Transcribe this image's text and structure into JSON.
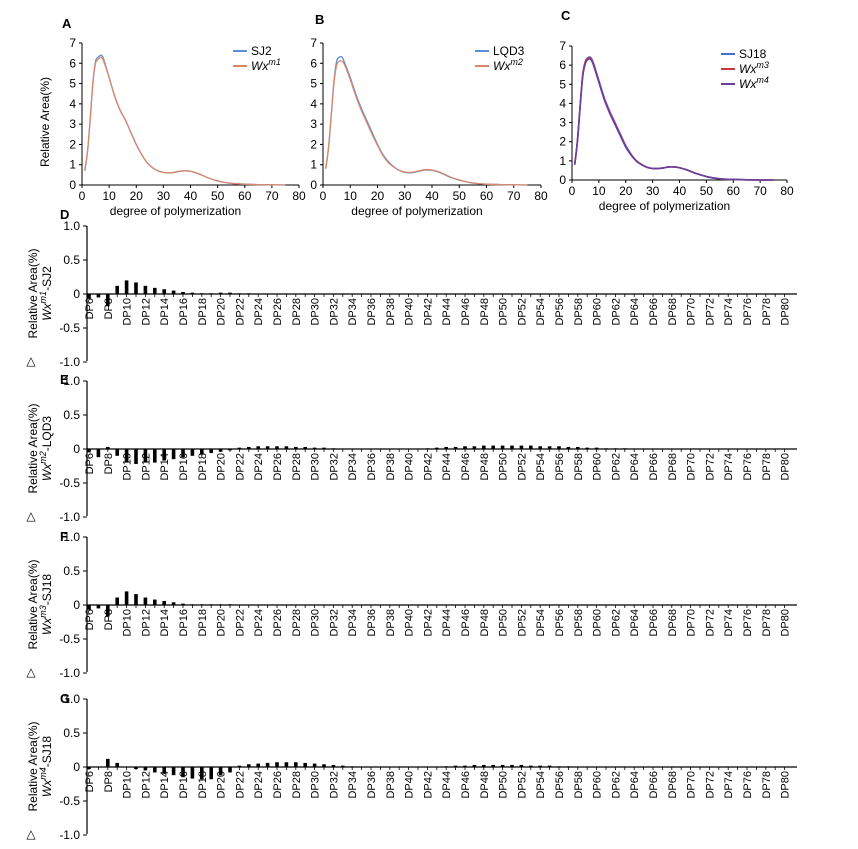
{
  "top_panels": [
    {
      "panel": "A",
      "xlabel": "degree of polymerization",
      "ylabel": "Relative Area(%)",
      "xlim": [
        0,
        80
      ],
      "ylim": [
        0,
        7
      ],
      "xticks": [
        0,
        10,
        20,
        30,
        40,
        50,
        60,
        70,
        80
      ],
      "yticks": [
        0,
        1,
        2,
        3,
        4,
        5,
        6,
        7
      ],
      "legend_position": "top-right",
      "series": [
        {
          "base": "SJ2",
          "sup": "",
          "italic": false,
          "color": "#5b8fd6"
        },
        {
          "base": "Wx",
          "sup": "m1",
          "italic": true,
          "color": "#d9876a"
        }
      ]
    },
    {
      "panel": "B",
      "xlabel": "degree of polymerization",
      "ylabel": "",
      "xlim": [
        0,
        80
      ],
      "ylim": [
        0,
        7
      ],
      "xticks": [
        0,
        10,
        20,
        30,
        40,
        50,
        60,
        70,
        80
      ],
      "yticks": [
        0,
        1,
        2,
        3,
        4,
        5,
        6,
        7
      ],
      "legend_position": "top-right",
      "series": [
        {
          "base": "LQD3",
          "sup": "",
          "italic": false,
          "color": "#5b8fd6"
        },
        {
          "base": "Wx",
          "sup": "m2",
          "italic": true,
          "color": "#d9876a"
        }
      ]
    },
    {
      "panel": "C",
      "xlabel": "degree of polymerization",
      "ylabel": "",
      "xlim": [
        0,
        80
      ],
      "ylim": [
        0,
        7
      ],
      "xticks": [
        0,
        10,
        20,
        30,
        40,
        50,
        60,
        70,
        80
      ],
      "yticks": [
        0,
        1,
        2,
        3,
        4,
        5,
        6,
        7
      ],
      "legend_position": "top-right",
      "series": [
        {
          "base": "SJ18",
          "sup": "",
          "italic": false,
          "color": "#3f6fd8"
        },
        {
          "base": "Wx",
          "sup": "m3",
          "italic": true,
          "color": "#c8383a"
        },
        {
          "base": "Wx",
          "sup": "m4",
          "italic": true,
          "color": "#6a3fa0"
        }
      ]
    }
  ],
  "chart_data": [
    {
      "type": "line",
      "panel": "A",
      "x": [
        1,
        2,
        3,
        4,
        5,
        6,
        7,
        8,
        10,
        12,
        14,
        16,
        18,
        20,
        22,
        24,
        26,
        28,
        30,
        32,
        34,
        36,
        38,
        40,
        42,
        44,
        46,
        48,
        50,
        52,
        54,
        56,
        60,
        65,
        70,
        75
      ],
      "series": [
        {
          "name": "SJ2",
          "values": [
            0.7,
            1.6,
            3.2,
            5.0,
            6.1,
            6.3,
            6.4,
            6.2,
            5.3,
            4.4,
            3.7,
            3.2,
            2.6,
            2.0,
            1.5,
            1.1,
            0.85,
            0.7,
            0.62,
            0.6,
            0.62,
            0.68,
            0.7,
            0.68,
            0.6,
            0.5,
            0.38,
            0.28,
            0.2,
            0.14,
            0.1,
            0.07,
            0.04,
            0.02,
            0.01,
            0.0
          ]
        },
        {
          "name": "Wxm1",
          "values": [
            0.7,
            1.6,
            3.2,
            5.0,
            6.0,
            6.2,
            6.3,
            6.1,
            5.3,
            4.4,
            3.7,
            3.2,
            2.6,
            2.0,
            1.5,
            1.1,
            0.85,
            0.7,
            0.62,
            0.6,
            0.62,
            0.68,
            0.7,
            0.68,
            0.6,
            0.5,
            0.38,
            0.28,
            0.2,
            0.14,
            0.1,
            0.07,
            0.04,
            0.02,
            0.01,
            0.0
          ]
        }
      ]
    },
    {
      "type": "line",
      "panel": "B",
      "x": [
        1,
        2,
        3,
        4,
        5,
        6,
        7,
        8,
        10,
        12,
        14,
        16,
        18,
        20,
        22,
        24,
        26,
        28,
        30,
        32,
        34,
        36,
        38,
        40,
        42,
        44,
        46,
        48,
        50,
        52,
        54,
        56,
        60,
        65,
        70,
        75
      ],
      "series": [
        {
          "name": "LQD3",
          "values": [
            0.8,
            1.8,
            3.4,
            5.1,
            6.1,
            6.3,
            6.3,
            6.0,
            5.3,
            4.5,
            3.8,
            3.2,
            2.6,
            2.0,
            1.5,
            1.15,
            0.9,
            0.72,
            0.62,
            0.6,
            0.64,
            0.7,
            0.74,
            0.72,
            0.65,
            0.55,
            0.42,
            0.32,
            0.24,
            0.17,
            0.12,
            0.08,
            0.04,
            0.02,
            0.01,
            0.0
          ]
        },
        {
          "name": "Wxm2",
          "values": [
            0.8,
            1.8,
            3.4,
            5.0,
            5.9,
            6.1,
            6.1,
            5.9,
            5.2,
            4.4,
            3.7,
            3.1,
            2.5,
            1.95,
            1.45,
            1.1,
            0.88,
            0.72,
            0.64,
            0.62,
            0.66,
            0.72,
            0.76,
            0.74,
            0.67,
            0.57,
            0.44,
            0.33,
            0.25,
            0.18,
            0.12,
            0.08,
            0.04,
            0.02,
            0.01,
            0.0
          ]
        }
      ]
    },
    {
      "type": "line",
      "panel": "C",
      "x": [
        1,
        2,
        3,
        4,
        5,
        6,
        7,
        8,
        10,
        12,
        14,
        16,
        18,
        20,
        22,
        24,
        26,
        28,
        30,
        32,
        34,
        36,
        38,
        40,
        42,
        44,
        46,
        48,
        50,
        52,
        54,
        56,
        60,
        65,
        70,
        75
      ],
      "series": [
        {
          "name": "SJ18",
          "values": [
            0.8,
            2.0,
            3.8,
            5.5,
            6.2,
            6.4,
            6.4,
            6.1,
            5.2,
            4.3,
            3.6,
            3.0,
            2.4,
            1.8,
            1.35,
            1.0,
            0.8,
            0.66,
            0.6,
            0.6,
            0.63,
            0.68,
            0.68,
            0.64,
            0.56,
            0.46,
            0.35,
            0.26,
            0.18,
            0.12,
            0.08,
            0.05,
            0.03,
            0.01,
            0.0,
            0.0
          ]
        },
        {
          "name": "Wxm3",
          "values": [
            0.8,
            2.0,
            3.8,
            5.5,
            6.2,
            6.35,
            6.35,
            6.05,
            5.15,
            4.25,
            3.55,
            2.95,
            2.35,
            1.75,
            1.32,
            1.0,
            0.8,
            0.66,
            0.6,
            0.6,
            0.63,
            0.68,
            0.68,
            0.64,
            0.56,
            0.46,
            0.35,
            0.26,
            0.18,
            0.12,
            0.08,
            0.05,
            0.03,
            0.01,
            0.0,
            0.0
          ]
        },
        {
          "name": "Wxm4",
          "values": [
            0.8,
            2.0,
            3.8,
            5.4,
            6.1,
            6.3,
            6.3,
            6.0,
            5.1,
            4.2,
            3.5,
            2.9,
            2.3,
            1.72,
            1.3,
            0.98,
            0.79,
            0.66,
            0.6,
            0.6,
            0.63,
            0.68,
            0.68,
            0.64,
            0.56,
            0.46,
            0.35,
            0.26,
            0.18,
            0.12,
            0.08,
            0.05,
            0.03,
            0.01,
            0.0,
            0.0
          ]
        }
      ]
    },
    {
      "type": "bar",
      "panel": "D",
      "ylabel_line1": "Relative Area(%)",
      "ylabel_base": "Wx",
      "ylabel_sup": "m1",
      "ylabel_suffix": "-SJ2",
      "ylim": [
        -1.0,
        1.0
      ],
      "yticks": [
        "1.0",
        "0.5",
        "0",
        "-0.5",
        "-1.0"
      ],
      "yticks_values": [
        1.0,
        0.5,
        0,
        -0.5,
        -1.0
      ],
      "dp_start": 6,
      "tick_labels": [
        "DP6",
        "DP8",
        "DP10",
        "DP12",
        "DP14",
        "DP16",
        "DP18",
        "DP20",
        "DP22",
        "DP24",
        "DP26",
        "DP28",
        "DP30",
        "DP32",
        "DP34",
        "DP36",
        "DP38",
        "DP40",
        "DP42",
        "DP44",
        "DP46",
        "DP48",
        "DP50",
        "DP52",
        "DP54",
        "DP56",
        "DP58",
        "DP60",
        "DP62",
        "DP64",
        "DP66",
        "DP68",
        "DP70",
        "DP72",
        "DP74",
        "DP76",
        "DP78",
        "DP80"
      ],
      "values": [
        -0.07,
        -0.05,
        -0.18,
        0.12,
        0.2,
        0.17,
        0.12,
        0.09,
        0.07,
        0.05,
        0.03,
        0.02,
        0.01,
        0.01,
        0.02,
        0.02,
        0.01,
        0.01,
        0.0,
        0.0,
        0.0,
        0.0,
        0.0,
        0.0,
        0.0,
        0.0,
        0.0,
        0.0,
        0.0,
        0.0,
        0.0,
        0.0,
        0.0,
        0.0,
        0.0,
        0.0,
        0.0,
        0.0,
        0.0,
        0.0,
        0.0,
        0.0,
        0.0,
        0.0,
        0.0,
        0.0,
        0.0,
        0.0,
        0.0,
        0.0,
        0.0,
        0.0,
        0.0,
        0.0,
        0.0,
        0.0,
        0.0,
        0.0,
        0.0,
        0.0,
        0.0,
        0.0,
        0.0,
        0.0,
        0.0,
        0.0,
        0.0,
        0.0,
        0.0,
        0.0,
        0.0,
        0.0,
        0.0,
        0.0,
        0.0
      ]
    },
    {
      "type": "bar",
      "panel": "E",
      "ylabel_line1": "Relative Area(%)",
      "ylabel_base": "Wx",
      "ylabel_sup": "m2",
      "ylabel_suffix": "-LQD3",
      "ylim": [
        -1.0,
        1.0
      ],
      "yticks": [
        "1.0",
        "0.5",
        "0",
        "-0.5",
        "-1.0"
      ],
      "yticks_values": [
        1.0,
        0.5,
        0,
        -0.5,
        -1.0
      ],
      "dp_start": 6,
      "tick_labels": [
        "DP6",
        "DP8",
        "DP10",
        "DP12",
        "DP14",
        "DP16",
        "DP18",
        "DP20",
        "DP22",
        "DP24",
        "DP26",
        "DP28",
        "DP30",
        "DP32",
        "DP34",
        "DP36",
        "DP38",
        "DP40",
        "DP42",
        "DP44",
        "DP46",
        "DP48",
        "DP50",
        "DP52",
        "DP54",
        "DP56",
        "DP58",
        "DP60",
        "DP62",
        "DP64",
        "DP66",
        "DP68",
        "DP70",
        "DP72",
        "DP74",
        "DP76",
        "DP78",
        "DP80"
      ],
      "values": [
        -0.05,
        -0.12,
        0.03,
        -0.1,
        -0.2,
        -0.22,
        -0.2,
        -0.2,
        -0.17,
        -0.15,
        -0.12,
        -0.1,
        -0.08,
        -0.06,
        -0.04,
        -0.02,
        0.02,
        0.03,
        0.04,
        0.04,
        0.04,
        0.04,
        0.03,
        0.03,
        0.02,
        0.02,
        0.01,
        0.0,
        0.0,
        0.0,
        0.0,
        0.0,
        0.0,
        0.0,
        0.0,
        0.0,
        0.01,
        0.02,
        0.03,
        0.03,
        0.04,
        0.04,
        0.05,
        0.05,
        0.05,
        0.05,
        0.05,
        0.05,
        0.04,
        0.04,
        0.04,
        0.03,
        0.03,
        0.02,
        0.02,
        0.01,
        0.01,
        0.01,
        0.0,
        0.0,
        0.0,
        0.0,
        0.0,
        0.0,
        0.0,
        0.0,
        0.0,
        0.0,
        0.0,
        0.0,
        0.0,
        0.0,
        0.0,
        0.0,
        0.0
      ]
    },
    {
      "type": "bar",
      "panel": "F",
      "ylabel_line1": "Relative Area(%)",
      "ylabel_base": "Wx",
      "ylabel_sup": "m3",
      "ylabel_suffix": "-SJ18",
      "ylim": [
        -1.0,
        1.0
      ],
      "yticks": [
        "1.0",
        "0.5",
        "0",
        "-0.5",
        "-1.0"
      ],
      "yticks_values": [
        1.0,
        0.5,
        0,
        -0.5,
        -1.0
      ],
      "dp_start": 6,
      "tick_labels": [
        "DP6",
        "DP8",
        "DP10",
        "DP12",
        "DP14",
        "DP16",
        "DP18",
        "DP20",
        "DP22",
        "DP24",
        "DP26",
        "DP28",
        "DP30",
        "DP32",
        "DP34",
        "DP36",
        "DP38",
        "DP40",
        "DP42",
        "DP44",
        "DP46",
        "DP48",
        "DP50",
        "DP52",
        "DP54",
        "DP56",
        "DP58",
        "DP60",
        "DP62",
        "DP64",
        "DP66",
        "DP68",
        "DP70",
        "DP72",
        "DP74",
        "DP76",
        "DP78",
        "DP80"
      ],
      "values": [
        -0.07,
        -0.05,
        -0.17,
        0.11,
        0.2,
        0.16,
        0.11,
        0.08,
        0.06,
        0.04,
        0.02,
        0.01,
        0.01,
        0.01,
        0.01,
        0.01,
        0.0,
        0.0,
        0.0,
        0.0,
        0.0,
        0.0,
        0.0,
        0.0,
        0.0,
        0.0,
        0.0,
        0.0,
        0.0,
        0.0,
        0.0,
        0.0,
        0.0,
        0.0,
        0.0,
        0.0,
        0.0,
        0.0,
        0.0,
        0.0,
        0.0,
        0.0,
        0.0,
        0.0,
        0.0,
        0.0,
        0.0,
        0.0,
        0.0,
        0.0,
        0.0,
        0.0,
        0.0,
        0.0,
        0.0,
        0.0,
        0.0,
        0.0,
        0.0,
        0.0,
        0.0,
        0.0,
        0.0,
        0.0,
        0.0,
        0.0,
        0.0,
        0.0,
        0.0,
        0.0,
        0.0,
        0.0,
        0.0,
        0.0,
        0.0
      ]
    },
    {
      "type": "bar",
      "panel": "G",
      "ylabel_line1": "Relative Area(%)",
      "ylabel_base": "Wx",
      "ylabel_sup": "m4",
      "ylabel_suffix": "-SJ18",
      "ylim": [
        -1.0,
        1.0
      ],
      "yticks": [
        "1.0",
        "0.5",
        "0",
        "-0.5",
        "-1.0"
      ],
      "yticks_values": [
        1.0,
        0.5,
        0,
        -0.5,
        -1.0
      ],
      "dp_start": 6,
      "tick_labels": [
        "DP6",
        "DP8",
        "DP10",
        "DP12",
        "DP14",
        "DP16",
        "DP18",
        "DP20",
        "DP22",
        "DP24",
        "DP26",
        "DP28",
        "DP30",
        "DP32",
        "DP34",
        "DP36",
        "DP38",
        "DP40",
        "DP42",
        "DP44",
        "DP46",
        "DP48",
        "DP50",
        "DP52",
        "DP54",
        "DP56",
        "DP58",
        "DP60",
        "DP62",
        "DP64",
        "DP66",
        "DP68",
        "DP70",
        "DP72",
        "DP74",
        "DP76",
        "DP78",
        "DP80"
      ],
      "values": [
        -0.03,
        0.0,
        0.12,
        0.06,
        0.0,
        -0.03,
        -0.05,
        -0.08,
        -0.1,
        -0.12,
        -0.15,
        -0.17,
        -0.18,
        -0.18,
        -0.12,
        -0.08,
        0.02,
        0.04,
        0.05,
        0.06,
        0.07,
        0.07,
        0.07,
        0.06,
        0.05,
        0.04,
        0.03,
        0.02,
        0.01,
        0.0,
        0.0,
        0.0,
        0.0,
        0.0,
        0.0,
        0.0,
        0.0,
        0.0,
        0.01,
        0.02,
        0.02,
        0.03,
        0.03,
        0.03,
        0.03,
        0.03,
        0.03,
        0.02,
        0.02,
        0.02,
        0.01,
        0.01,
        0.0,
        0.0,
        0.0,
        0.0,
        0.0,
        0.0,
        0.0,
        0.0,
        0.0,
        0.0,
        0.0,
        0.0,
        0.0,
        0.0,
        0.0,
        0.0,
        0.0,
        0.0,
        0.0,
        0.0,
        0.0,
        0.0,
        0.0
      ]
    }
  ]
}
